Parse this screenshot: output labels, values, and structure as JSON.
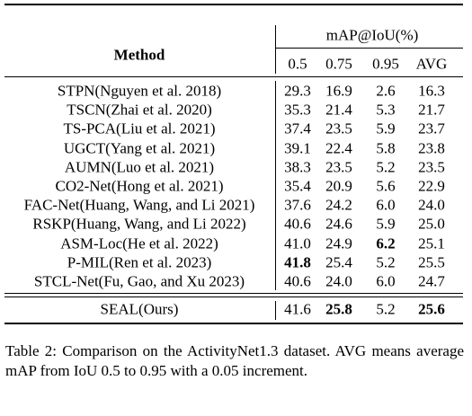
{
  "table": {
    "group_header": "mAP@IoU(%)",
    "columns": [
      "Method",
      "0.5",
      "0.75",
      "0.95",
      "AVG"
    ],
    "rows": [
      [
        "STPN(Nguyen et al. 2018)",
        "29.3",
        "16.9",
        "2.6",
        "16.3"
      ],
      [
        "TSCN(Zhai et al. 2020)",
        "35.3",
        "21.4",
        "5.3",
        "21.7"
      ],
      [
        "TS-PCA(Liu et al. 2021)",
        "37.4",
        "23.5",
        "5.9",
        "23.7"
      ],
      [
        "UGCT(Yang et al. 2021)",
        "39.1",
        "22.4",
        "5.8",
        "23.8"
      ],
      [
        "AUMN(Luo et al. 2021)",
        "38.3",
        "23.5",
        "5.2",
        "23.5"
      ],
      [
        "CO2-Net(Hong et al. 2021)",
        "35.4",
        "20.9",
        "5.6",
        "22.9"
      ],
      [
        "FAC-Net(Huang, Wang, and Li 2021)",
        "37.6",
        "24.2",
        "6.0",
        "24.0"
      ],
      [
        "RSKP(Huang, Wang, and Li 2022)",
        "40.6",
        "24.6",
        "5.9",
        "25.0"
      ],
      [
        "ASM-Loc(He et al. 2022)",
        "41.0",
        "24.9",
        "6.2",
        "25.1"
      ],
      [
        "P-MIL(Ren et al. 2023)",
        "41.8",
        "25.4",
        "5.2",
        "25.5"
      ],
      [
        "STCL-Net(Fu, Gao, and Xu 2023)",
        "40.6",
        "24.0",
        "6.0",
        "24.7"
      ]
    ],
    "final_row": [
      "SEAL(Ours)",
      "41.6",
      "25.8",
      "5.2",
      "25.6"
    ]
  },
  "caption": "Table 2: Comparison on the ActivityNet1.3 dataset. AVG means average mAP from IoU 0.5 to 0.95 with a 0.05 increment."
}
